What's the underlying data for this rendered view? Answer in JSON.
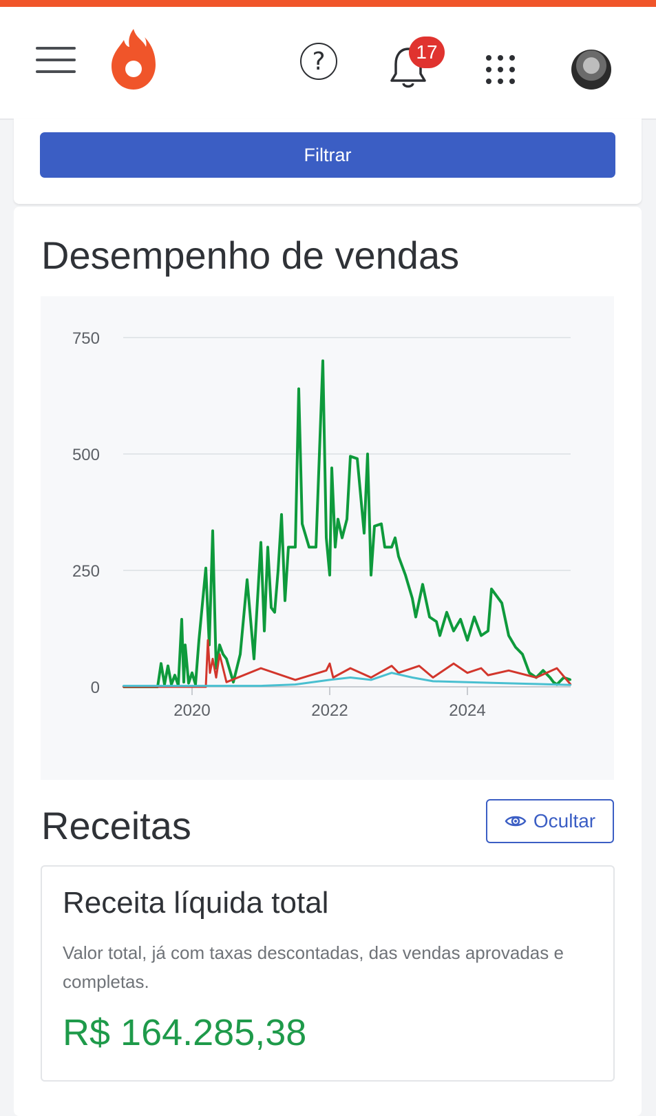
{
  "header": {
    "notification_count": "17",
    "icons": [
      "menu-icon",
      "fire-logo-icon",
      "help-icon",
      "bell-icon",
      "apps-grid-icon",
      "avatar"
    ]
  },
  "filter": {
    "button_label": "Filtrar"
  },
  "sales": {
    "title": "Desempenho de vendas"
  },
  "chart_data": {
    "type": "line",
    "title": "",
    "xlabel": "",
    "ylabel": "",
    "ylim": [
      0,
      750
    ],
    "y_ticks": [
      "750",
      "500",
      "250",
      "0"
    ],
    "x_ticks": [
      "2020",
      "2022",
      "2024"
    ],
    "xlim": [
      2019.0,
      2025.5
    ],
    "grid": true,
    "colors": [
      "#0e9a3c",
      "#d2362c",
      "#49bfd0"
    ],
    "series": [
      {
        "color": "#0e9a3c",
        "x": [
          2019.0,
          2019.5,
          2019.55,
          2019.6,
          2019.65,
          2019.7,
          2019.75,
          2019.8,
          2019.85,
          2019.88,
          2019.9,
          2019.95,
          2020.0,
          2020.05,
          2020.1,
          2020.2,
          2020.25,
          2020.3,
          2020.35,
          2020.4,
          2020.45,
          2020.5,
          2020.6,
          2020.7,
          2020.8,
          2020.9,
          2021.0,
          2021.05,
          2021.1,
          2021.15,
          2021.2,
          2021.25,
          2021.3,
          2021.35,
          2021.4,
          2021.5,
          2021.55,
          2021.6,
          2021.7,
          2021.8,
          2021.9,
          2021.95,
          2022.0,
          2022.03,
          2022.08,
          2022.12,
          2022.18,
          2022.25,
          2022.3,
          2022.4,
          2022.5,
          2022.55,
          2022.6,
          2022.65,
          2022.75,
          2022.8,
          2022.9,
          2022.95,
          2023.0,
          2023.1,
          2023.2,
          2023.25,
          2023.35,
          2023.45,
          2023.55,
          2023.6,
          2023.7,
          2023.8,
          2023.9,
          2024.0,
          2024.1,
          2024.2,
          2024.3,
          2024.35,
          2024.5,
          2024.6,
          2024.7,
          2024.8,
          2024.9,
          2025.0,
          2025.1,
          2025.2,
          2025.25,
          2025.3,
          2025.4,
          2025.5
        ],
        "values": [
          0,
          0,
          50,
          5,
          45,
          5,
          25,
          3,
          145,
          10,
          90,
          8,
          30,
          5,
          100,
          255,
          90,
          335,
          40,
          90,
          70,
          60,
          10,
          70,
          230,
          60,
          310,
          120,
          300,
          170,
          160,
          250,
          370,
          185,
          300,
          300,
          640,
          350,
          300,
          300,
          700,
          320,
          240,
          470,
          300,
          360,
          320,
          360,
          495,
          490,
          330,
          500,
          240,
          345,
          350,
          300,
          300,
          320,
          280,
          240,
          190,
          150,
          220,
          150,
          140,
          110,
          160,
          120,
          145,
          100,
          150,
          110,
          120,
          210,
          180,
          110,
          85,
          70,
          30,
          20,
          35,
          20,
          10,
          5,
          20,
          15
        ]
      },
      {
        "color": "#d2362c",
        "x": [
          2019.0,
          2020.2,
          2020.23,
          2020.26,
          2020.3,
          2020.35,
          2020.4,
          2020.5,
          2021.0,
          2021.5,
          2021.95,
          2022.0,
          2022.05,
          2022.3,
          2022.6,
          2022.9,
          2023.0,
          2023.3,
          2023.5,
          2023.7,
          2023.8,
          2024.0,
          2024.2,
          2024.3,
          2024.6,
          2025.0,
          2025.3,
          2025.5
        ],
        "values": [
          0,
          0,
          100,
          30,
          60,
          20,
          70,
          10,
          40,
          15,
          35,
          50,
          20,
          40,
          20,
          45,
          30,
          45,
          20,
          40,
          50,
          30,
          40,
          25,
          35,
          20,
          40,
          5
        ]
      },
      {
        "color": "#49bfd0",
        "x": [
          2019.0,
          2021.0,
          2021.5,
          2022.0,
          2022.3,
          2022.6,
          2022.9,
          2023.2,
          2023.5,
          2024.0,
          2024.5,
          2025.0,
          2025.5
        ],
        "values": [
          2,
          2,
          5,
          15,
          20,
          15,
          30,
          20,
          12,
          10,
          8,
          6,
          4
        ]
      }
    ]
  },
  "revenue": {
    "title": "Receitas",
    "hide_button_label": "Ocultar",
    "card": {
      "title": "Receita líquida total",
      "description": "Valor total, já com taxas descontadas, das vendas aprovadas e completas.",
      "value": "R$ 164.285,38"
    }
  }
}
